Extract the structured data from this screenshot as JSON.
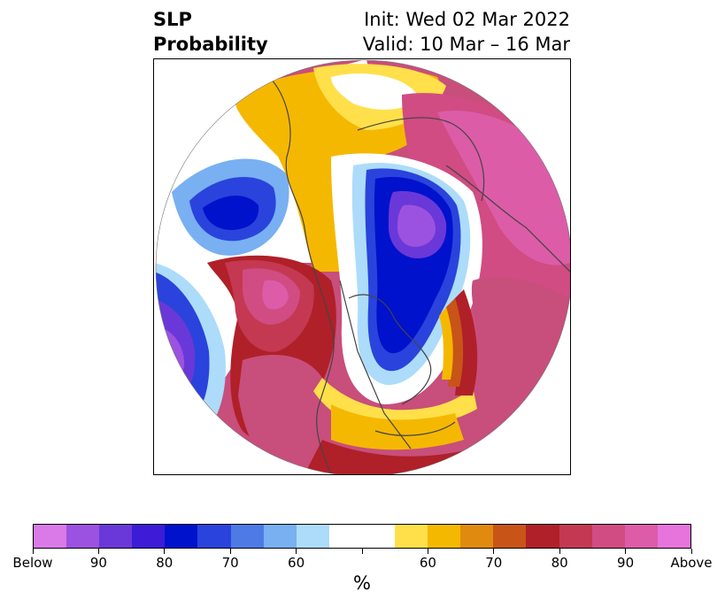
{
  "header": {
    "title_line1": "SLP",
    "title_line2": "Probability",
    "init_label": "Init: Wed 02 Mar 2022",
    "valid_label": "Valid: 10 Mar – 16 Mar"
  },
  "map": {
    "projection": "polar-stereographic",
    "hemisphere": "northern",
    "features": [
      "coastlines",
      "country-borders",
      "state-borders"
    ],
    "background": "#ffffff",
    "line_color": "#444444"
  },
  "colorbar": {
    "unit": "%",
    "colors": [
      "#d97ae8",
      "#9c52e0",
      "#6a38d8",
      "#3c1cd6",
      "#0012cc",
      "#2a43dc",
      "#4e7ae6",
      "#78b0f2",
      "#acdcfa",
      "#ffffff",
      "#ffffff",
      "#ffe04a",
      "#f5b800",
      "#e08a10",
      "#c85418",
      "#b02028",
      "#c43852",
      "#d04c82",
      "#dc5ca8",
      "#e674dc"
    ],
    "tick_labels": [
      "Below",
      "90",
      "80",
      "70",
      "60",
      "",
      "60",
      "70",
      "80",
      "90",
      "Above"
    ]
  }
}
